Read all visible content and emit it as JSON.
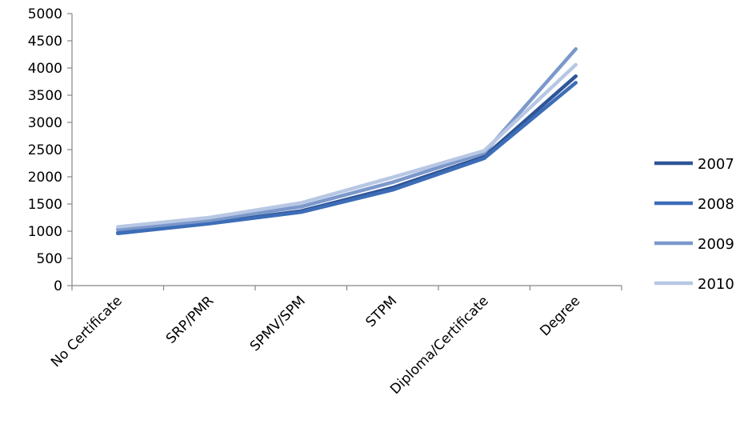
{
  "chart_data": {
    "type": "line",
    "categories": [
      "No Certificate",
      "SRP/PMR",
      "SPMV/SPM",
      "STPM",
      "Diploma/Certificate",
      "Degree"
    ],
    "series": [
      {
        "name": "2007",
        "values": [
          970,
          1150,
          1370,
          1800,
          2370,
          3850
        ],
        "color": "#2E5597"
      },
      {
        "name": "2008",
        "values": [
          960,
          1140,
          1350,
          1760,
          2340,
          3730
        ],
        "color": "#3D6DB7"
      },
      {
        "name": "2009",
        "values": [
          1030,
          1200,
          1450,
          1900,
          2440,
          4350
        ],
        "color": "#7B98CB"
      },
      {
        "name": "2010",
        "values": [
          1080,
          1250,
          1520,
          1990,
          2480,
          4060
        ],
        "color": "#B7C7E4"
      }
    ],
    "yticks": [
      0,
      500,
      1000,
      1500,
      2000,
      2500,
      3000,
      3500,
      4000,
      4500,
      5000
    ],
    "ylim": [
      0,
      5000
    ],
    "grid": false,
    "legend_position": "right"
  }
}
